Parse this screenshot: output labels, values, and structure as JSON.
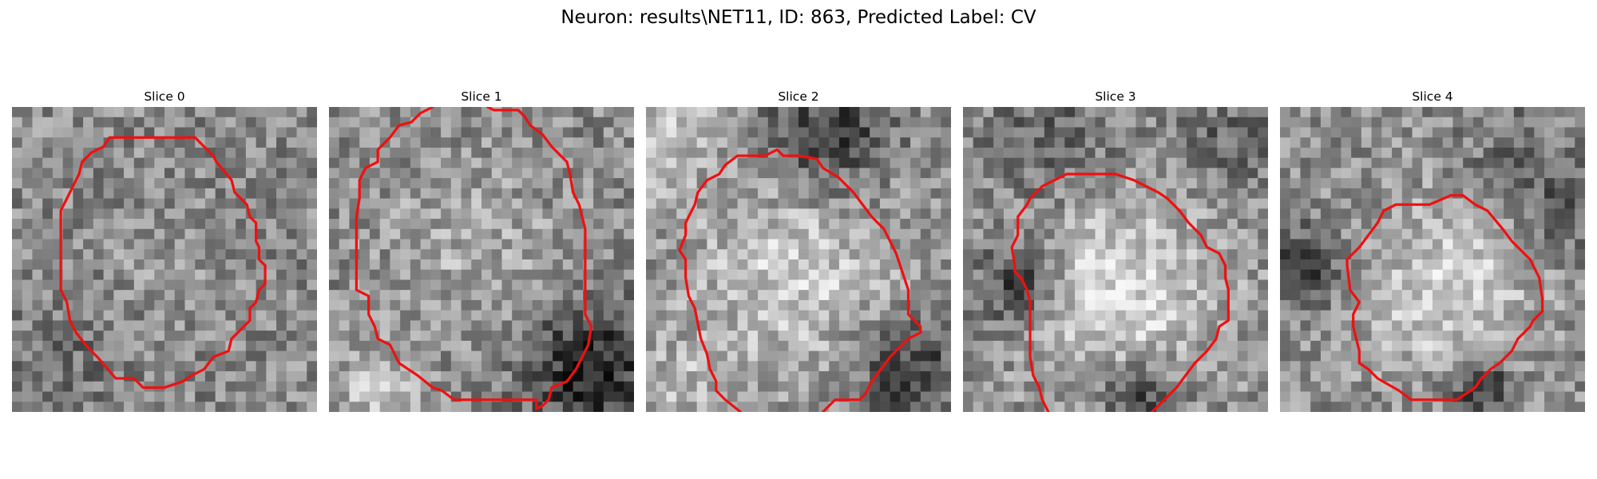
{
  "figure": {
    "title": "Neuron: results\\NET11, ID: 863, Predicted Label: CV"
  },
  "panels": [
    {
      "title": "Slice 0",
      "contour": [
        [
          3.7,
          1.0
        ],
        [
          6.0,
          1.0
        ],
        [
          6.6,
          1.6
        ],
        [
          6.7,
          1.8
        ],
        [
          7.2,
          2.4
        ],
        [
          7.3,
          2.8
        ],
        [
          7.7,
          3.2
        ],
        [
          7.8,
          3.6
        ],
        [
          8.0,
          3.8
        ],
        [
          8.0,
          4.4
        ],
        [
          8.1,
          4.6
        ],
        [
          8.1,
          5.0
        ],
        [
          8.3,
          5.2
        ],
        [
          8.3,
          5.8
        ],
        [
          8.1,
          6.0
        ],
        [
          8.0,
          6.4
        ],
        [
          7.8,
          6.6
        ],
        [
          7.8,
          7.0
        ],
        [
          7.2,
          7.6
        ],
        [
          7.1,
          8.0
        ],
        [
          6.6,
          8.2
        ],
        [
          6.3,
          8.6
        ],
        [
          5.9,
          8.8
        ],
        [
          5.6,
          9.0
        ],
        [
          5.0,
          9.2
        ],
        [
          4.3,
          9.2
        ],
        [
          4.0,
          8.9
        ],
        [
          3.4,
          8.9
        ],
        [
          2.8,
          8.2
        ],
        [
          2.5,
          7.9
        ],
        [
          2.1,
          7.4
        ],
        [
          1.9,
          7.0
        ],
        [
          1.8,
          6.4
        ],
        [
          1.6,
          6.0
        ],
        [
          1.6,
          4.6
        ],
        [
          1.6,
          3.4
        ],
        [
          1.8,
          3.0
        ],
        [
          2.0,
          2.6
        ],
        [
          2.2,
          2.2
        ],
        [
          2.3,
          1.8
        ],
        [
          2.6,
          1.5
        ],
        [
          3.0,
          1.3
        ],
        [
          3.2,
          1.0
        ],
        [
          3.7,
          1.0
        ]
      ]
    },
    {
      "title": "Slice 1",
      "contour": [
        [
          3.4,
          0.0
        ],
        [
          3.0,
          0.2
        ],
        [
          2.7,
          0.5
        ],
        [
          2.3,
          0.6
        ],
        [
          2.0,
          1.0
        ],
        [
          1.6,
          1.4
        ],
        [
          1.6,
          1.8
        ],
        [
          1.2,
          2.0
        ],
        [
          1.0,
          2.4
        ],
        [
          1.0,
          3.0
        ],
        [
          0.9,
          3.6
        ],
        [
          0.9,
          4.6
        ],
        [
          0.9,
          5.4
        ],
        [
          0.9,
          6.0
        ],
        [
          1.3,
          6.2
        ],
        [
          1.3,
          6.8
        ],
        [
          1.5,
          7.2
        ],
        [
          1.6,
          7.6
        ],
        [
          2.0,
          7.8
        ],
        [
          2.3,
          8.4
        ],
        [
          2.9,
          8.8
        ],
        [
          3.4,
          9.2
        ],
        [
          3.7,
          9.3
        ],
        [
          4.1,
          9.6
        ],
        [
          5.0,
          9.6
        ],
        [
          6.1,
          9.6
        ],
        [
          6.8,
          9.6
        ],
        [
          6.8,
          9.9
        ],
        [
          7.0,
          9.8
        ],
        [
          7.2,
          9.6
        ],
        [
          7.3,
          9.2
        ],
        [
          7.8,
          9.0
        ],
        [
          8.1,
          8.6
        ],
        [
          8.3,
          8.2
        ],
        [
          8.5,
          7.8
        ],
        [
          8.6,
          7.2
        ],
        [
          8.4,
          6.8
        ],
        [
          8.4,
          6.0
        ],
        [
          8.4,
          5.0
        ],
        [
          8.4,
          4.0
        ],
        [
          8.3,
          3.6
        ],
        [
          8.2,
          3.2
        ],
        [
          8.0,
          2.8
        ],
        [
          7.9,
          2.2
        ],
        [
          7.8,
          1.8
        ],
        [
          7.5,
          1.5
        ],
        [
          7.3,
          1.3
        ],
        [
          7.0,
          0.9
        ],
        [
          6.6,
          0.6
        ],
        [
          6.4,
          0.3
        ],
        [
          6.2,
          0.1
        ],
        [
          5.4,
          0.1
        ],
        [
          5.2,
          0.0
        ]
      ]
    },
    {
      "title": "Slice 2",
      "contour": [
        [
          3.1,
          10.0
        ],
        [
          2.6,
          9.6
        ],
        [
          2.3,
          9.3
        ],
        [
          2.3,
          9.0
        ],
        [
          2.1,
          8.6
        ],
        [
          2.0,
          8.1
        ],
        [
          1.8,
          7.6
        ],
        [
          1.7,
          7.1
        ],
        [
          1.6,
          6.6
        ],
        [
          1.4,
          6.2
        ],
        [
          1.3,
          5.6
        ],
        [
          1.3,
          5.0
        ],
        [
          1.1,
          4.7
        ],
        [
          1.3,
          4.2
        ],
        [
          1.3,
          3.8
        ],
        [
          1.6,
          3.2
        ],
        [
          1.7,
          2.8
        ],
        [
          2.0,
          2.4
        ],
        [
          2.4,
          2.2
        ],
        [
          2.6,
          1.9
        ],
        [
          3.0,
          1.6
        ],
        [
          3.1,
          1.6
        ],
        [
          3.9,
          1.6
        ],
        [
          4.3,
          1.4
        ],
        [
          4.5,
          1.6
        ],
        [
          5.0,
          1.6
        ],
        [
          5.6,
          1.7
        ],
        [
          5.8,
          2.0
        ],
        [
          6.3,
          2.3
        ],
        [
          6.8,
          2.8
        ],
        [
          7.1,
          3.2
        ],
        [
          7.4,
          3.6
        ],
        [
          7.8,
          4.0
        ],
        [
          8.0,
          4.4
        ],
        [
          8.2,
          4.8
        ],
        [
          8.4,
          5.4
        ],
        [
          8.6,
          6.0
        ],
        [
          8.6,
          6.8
        ],
        [
          9.0,
          7.2
        ],
        [
          9.0,
          7.4
        ],
        [
          8.6,
          7.6
        ],
        [
          8.0,
          8.2
        ],
        [
          7.7,
          8.6
        ],
        [
          7.4,
          9.0
        ],
        [
          7.2,
          9.4
        ],
        [
          7.0,
          9.6
        ],
        [
          6.2,
          9.6
        ],
        [
          5.8,
          10.0
        ]
      ]
    },
    {
      "title": "Slice 3",
      "contour": [
        [
          2.8,
          10.0
        ],
        [
          2.6,
          9.6
        ],
        [
          2.5,
          9.2
        ],
        [
          2.3,
          8.8
        ],
        [
          2.2,
          8.2
        ],
        [
          2.2,
          7.6
        ],
        [
          2.2,
          7.0
        ],
        [
          2.2,
          6.4
        ],
        [
          2.1,
          6.0
        ],
        [
          1.9,
          5.6
        ],
        [
          1.7,
          5.4
        ],
        [
          1.7,
          5.2
        ],
        [
          1.6,
          4.6
        ],
        [
          1.8,
          4.2
        ],
        [
          1.8,
          3.6
        ],
        [
          2.1,
          3.2
        ],
        [
          2.2,
          3.0
        ],
        [
          2.6,
          2.6
        ],
        [
          3.0,
          2.4
        ],
        [
          3.4,
          2.2
        ],
        [
          4.2,
          2.2
        ],
        [
          5.0,
          2.2
        ],
        [
          5.6,
          2.4
        ],
        [
          6.0,
          2.6
        ],
        [
          6.4,
          2.8
        ],
        [
          6.7,
          3.0
        ],
        [
          7.1,
          3.4
        ],
        [
          7.4,
          3.8
        ],
        [
          7.8,
          4.2
        ],
        [
          8.0,
          4.6
        ],
        [
          8.4,
          4.8
        ],
        [
          8.6,
          5.2
        ],
        [
          8.6,
          5.6
        ],
        [
          8.7,
          6.0
        ],
        [
          8.7,
          6.4
        ],
        [
          8.7,
          7.0
        ],
        [
          8.4,
          7.2
        ],
        [
          8.3,
          7.6
        ],
        [
          8.0,
          8.0
        ],
        [
          7.6,
          8.4
        ],
        [
          7.3,
          8.8
        ],
        [
          7.0,
          9.2
        ],
        [
          6.6,
          9.6
        ],
        [
          6.5,
          9.7
        ],
        [
          6.2,
          10.0
        ]
      ]
    },
    {
      "title": "Slice 4",
      "contour": [
        [
          5.6,
          2.9
        ],
        [
          6.0,
          2.9
        ],
        [
          6.4,
          3.2
        ],
        [
          6.8,
          3.4
        ],
        [
          7.3,
          4.0
        ],
        [
          7.6,
          4.4
        ],
        [
          8.2,
          5.0
        ],
        [
          8.5,
          5.6
        ],
        [
          8.6,
          6.3
        ],
        [
          8.6,
          6.7
        ],
        [
          8.3,
          7.0
        ],
        [
          8.2,
          7.2
        ],
        [
          7.8,
          7.6
        ],
        [
          7.6,
          8.0
        ],
        [
          7.2,
          8.4
        ],
        [
          6.9,
          8.6
        ],
        [
          6.6,
          8.9
        ],
        [
          6.4,
          9.2
        ],
        [
          5.8,
          9.6
        ],
        [
          4.3,
          9.6
        ],
        [
          3.9,
          9.3
        ],
        [
          3.2,
          8.9
        ],
        [
          2.9,
          8.6
        ],
        [
          2.6,
          8.4
        ],
        [
          2.6,
          8.0
        ],
        [
          2.5,
          7.6
        ],
        [
          2.4,
          7.2
        ],
        [
          2.4,
          6.8
        ],
        [
          2.6,
          6.4
        ],
        [
          2.3,
          6.0
        ],
        [
          2.2,
          5.2
        ],
        [
          2.2,
          5.0
        ],
        [
          2.6,
          4.6
        ],
        [
          2.9,
          4.2
        ],
        [
          3.2,
          3.8
        ],
        [
          3.4,
          3.4
        ],
        [
          3.8,
          3.2
        ],
        [
          4.2,
          3.2
        ],
        [
          4.9,
          3.2
        ],
        [
          5.6,
          2.9
        ]
      ]
    }
  ]
}
